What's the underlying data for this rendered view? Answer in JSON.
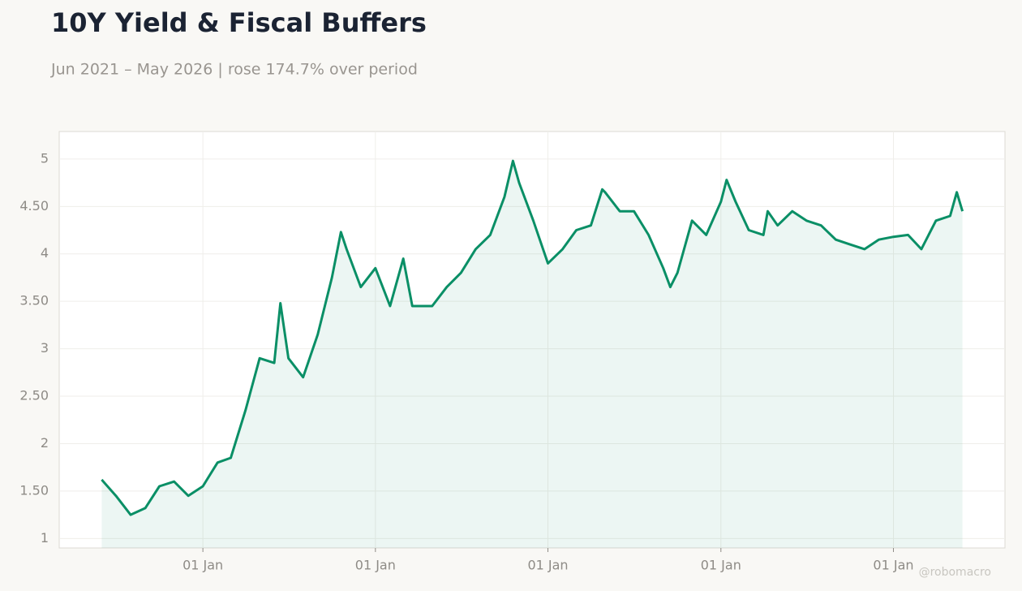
{
  "chart_data": {
    "type": "area",
    "title": "10Y Yield & Fiscal Buffers",
    "subtitle": "Jun 2021 – May 2026 | rose 174.7% over period",
    "watermark": "@robomacro",
    "color": "#0a8f66",
    "grid": true,
    "x": [
      "2021-06-01",
      "2021-07-01",
      "2021-08-01",
      "2021-09-01",
      "2021-10-01",
      "2021-11-01",
      "2021-12-01",
      "2022-01-01",
      "2022-02-01",
      "2022-03-01",
      "2022-04-01",
      "2022-05-01",
      "2022-06-01",
      "2022-06-14",
      "2022-07-01",
      "2022-08-01",
      "2022-09-01",
      "2022-10-01",
      "2022-10-20",
      "2022-11-01",
      "2022-12-01",
      "2023-01-01",
      "2023-02-01",
      "2023-03-01",
      "2023-03-20",
      "2023-04-01",
      "2023-05-01",
      "2023-06-01",
      "2023-07-01",
      "2023-08-01",
      "2023-09-01",
      "2023-10-01",
      "2023-10-19",
      "2023-11-01",
      "2023-12-01",
      "2024-01-01",
      "2024-02-01",
      "2024-03-01",
      "2024-04-01",
      "2024-04-25",
      "2024-05-01",
      "2024-06-01",
      "2024-07-01",
      "2024-08-01",
      "2024-09-01",
      "2024-09-16",
      "2024-10-01",
      "2024-11-01",
      "2024-12-01",
      "2025-01-01",
      "2025-01-13",
      "2025-02-01",
      "2025-03-01",
      "2025-04-01",
      "2025-04-10",
      "2025-05-01",
      "2025-06-01",
      "2025-07-01",
      "2025-08-01",
      "2025-09-01",
      "2025-10-01",
      "2025-11-01",
      "2025-12-01",
      "2026-01-01",
      "2026-02-01",
      "2026-03-01",
      "2026-04-01",
      "2026-05-01",
      "2026-05-15",
      "2026-05-27"
    ],
    "values": [
      1.62,
      1.45,
      1.25,
      1.32,
      1.55,
      1.6,
      1.45,
      1.55,
      1.8,
      1.85,
      2.35,
      2.9,
      2.85,
      3.48,
      2.9,
      2.7,
      3.15,
      3.75,
      4.23,
      4.05,
      3.65,
      3.85,
      3.45,
      3.95,
      3.45,
      3.45,
      3.45,
      3.65,
      3.8,
      4.05,
      4.2,
      4.6,
      4.98,
      4.75,
      4.35,
      3.9,
      4.05,
      4.25,
      4.3,
      4.68,
      4.65,
      4.45,
      4.45,
      4.2,
      3.85,
      3.65,
      3.8,
      4.35,
      4.2,
      4.55,
      4.78,
      4.55,
      4.25,
      4.2,
      4.45,
      4.3,
      4.45,
      4.35,
      4.3,
      4.15,
      4.1,
      4.05,
      4.15,
      4.18,
      4.2,
      4.05,
      4.35,
      4.4,
      4.65,
      4.45
    ],
    "xlim": [
      "2021-03-03",
      "2026-08-25"
    ],
    "xticks": [
      {
        "value": "2022-01-01",
        "label": "01 Jan"
      },
      {
        "value": "2023-01-01",
        "label": "01 Jan"
      },
      {
        "value": "2024-01-01",
        "label": "01 Jan"
      },
      {
        "value": "2025-01-01",
        "label": "01 Jan"
      },
      {
        "value": "2026-01-01",
        "label": "01 Jan"
      }
    ],
    "ylim": [
      0.9,
      5.29
    ],
    "yticks": [
      1,
      {
        "value": 1.5,
        "label": "1.50"
      },
      2,
      {
        "value": 2.5,
        "label": "2.50"
      },
      3,
      {
        "value": 3.5,
        "label": "3.50"
      },
      4,
      {
        "value": 4.5,
        "label": "4.50"
      },
      5
    ]
  }
}
